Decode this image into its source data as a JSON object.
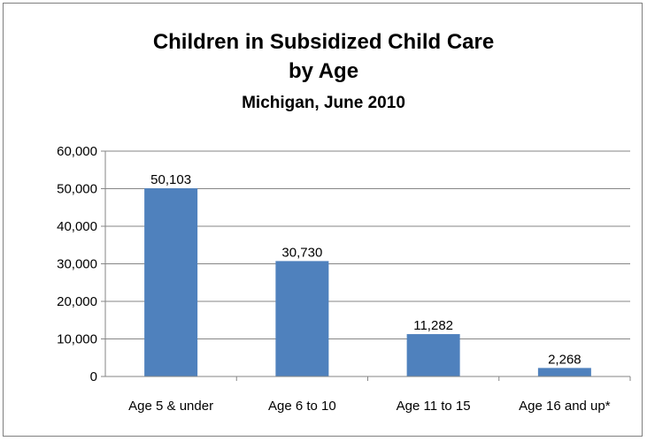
{
  "chart_data": {
    "type": "bar",
    "title": "Children in Subsidized Child Care",
    "title_line2": "by Age",
    "subtitle": "Michigan, June 2010",
    "categories": [
      "Age 5 & under",
      "Age 6 to 10",
      "Age 11 to 15",
      "Age 16 and up*"
    ],
    "values": [
      50103,
      30730,
      11282,
      2268
    ],
    "data_labels": [
      "50,103",
      "30,730",
      "11,282",
      "2,268"
    ],
    "ylim": [
      0,
      60000
    ],
    "yticks": [
      0,
      10000,
      20000,
      30000,
      40000,
      50000,
      60000
    ],
    "ytick_labels": [
      "0",
      "10,000",
      "20,000",
      "30,000",
      "40,000",
      "50,000",
      "60,000"
    ],
    "grid": true,
    "legend": "none",
    "bar_color": "#4f81bd",
    "xlabel": "",
    "ylabel": ""
  }
}
